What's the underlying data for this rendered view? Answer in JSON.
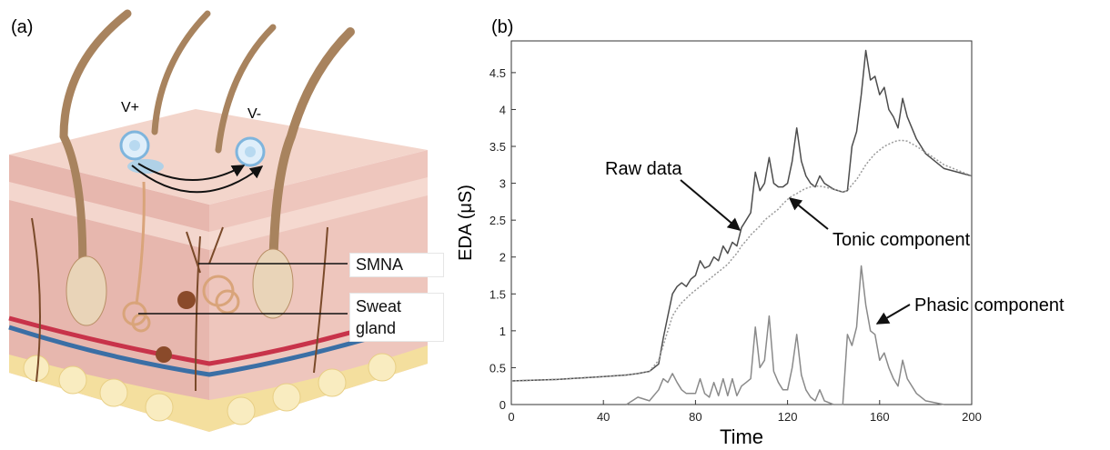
{
  "panel_a": {
    "label": "(a)",
    "electrode_plus": "V+",
    "electrode_minus": "V-",
    "smna": "SMNA",
    "sweat_gland": "Sweat gland"
  },
  "chart_data": {
    "type": "line",
    "panel_label": "(b)",
    "x_label": "Time",
    "y_label": "EDA (μS)",
    "xlim": [
      0,
      200
    ],
    "xticks": [
      0,
      40,
      80,
      120,
      160,
      200
    ],
    "ylim": [
      0,
      4.93
    ],
    "yticks": [
      0,
      0.5,
      1,
      1.5,
      2,
      2.5,
      3,
      3.5,
      4,
      4.5
    ],
    "x": [
      0,
      20,
      40,
      50,
      55,
      60,
      64,
      66,
      68,
      70,
      72,
      74,
      76,
      78,
      80,
      82,
      84,
      86,
      88,
      90,
      92,
      94,
      96,
      98,
      100,
      102,
      104,
      106,
      108,
      110,
      112,
      114,
      116,
      118,
      120,
      122,
      124,
      126,
      128,
      130,
      132,
      134,
      136,
      140,
      144,
      146,
      148,
      150,
      152,
      154,
      156,
      158,
      160,
      162,
      164,
      166,
      168,
      170,
      172,
      176,
      180,
      188,
      200
    ],
    "series": [
      {
        "name": "Raw data",
        "color": "#4d4d4d",
        "dash": "none",
        "values": [
          0.32,
          0.34,
          0.38,
          0.4,
          0.42,
          0.45,
          0.55,
          0.9,
          1.2,
          1.5,
          1.6,
          1.65,
          1.6,
          1.7,
          1.75,
          1.95,
          1.85,
          1.88,
          2.0,
          1.95,
          2.15,
          2.05,
          2.2,
          2.15,
          2.4,
          2.5,
          2.6,
          3.15,
          2.9,
          3.0,
          3.35,
          3.0,
          2.95,
          2.95,
          3.0,
          3.3,
          3.75,
          3.3,
          3.1,
          3.0,
          2.95,
          3.1,
          3.0,
          2.92,
          2.88,
          2.9,
          3.5,
          3.7,
          4.2,
          4.8,
          4.4,
          4.45,
          4.2,
          4.3,
          4.0,
          3.9,
          3.75,
          4.15,
          3.9,
          3.6,
          3.4,
          3.2,
          3.1
        ]
      },
      {
        "name": "Tonic component",
        "color": "#9a9a9a",
        "dash": "2 2",
        "values": [
          0.32,
          0.34,
          0.38,
          0.4,
          0.42,
          0.45,
          0.6,
          0.8,
          1.0,
          1.2,
          1.3,
          1.38,
          1.44,
          1.5,
          1.55,
          1.6,
          1.65,
          1.7,
          1.75,
          1.8,
          1.85,
          1.9,
          1.98,
          2.05,
          2.15,
          2.22,
          2.3,
          2.36,
          2.42,
          2.5,
          2.55,
          2.6,
          2.65,
          2.72,
          2.78,
          2.83,
          2.86,
          2.9,
          2.93,
          2.95,
          2.96,
          2.96,
          2.95,
          2.92,
          2.88,
          2.9,
          2.98,
          3.05,
          3.15,
          3.25,
          3.33,
          3.4,
          3.45,
          3.5,
          3.53,
          3.56,
          3.58,
          3.58,
          3.57,
          3.5,
          3.42,
          3.25,
          3.1
        ]
      },
      {
        "name": "Phasic component",
        "color": "#8a8a8a",
        "dash": "none",
        "values": [
          null,
          null,
          null,
          0.0,
          0.1,
          0.05,
          0.2,
          0.35,
          0.3,
          0.42,
          0.3,
          0.2,
          0.15,
          0.15,
          0.15,
          0.35,
          0.15,
          0.1,
          0.3,
          0.12,
          0.35,
          0.12,
          0.35,
          0.12,
          0.25,
          0.3,
          0.35,
          1.05,
          0.5,
          0.6,
          1.2,
          0.45,
          0.3,
          0.2,
          0.2,
          0.5,
          0.95,
          0.4,
          0.2,
          0.1,
          0.05,
          0.2,
          0.05,
          0.0,
          0.0,
          0.95,
          0.8,
          1.05,
          1.88,
          1.35,
          1.0,
          0.95,
          0.6,
          0.7,
          0.5,
          0.35,
          0.25,
          0.6,
          0.35,
          0.15,
          0.05,
          0.0,
          null
        ]
      }
    ]
  }
}
